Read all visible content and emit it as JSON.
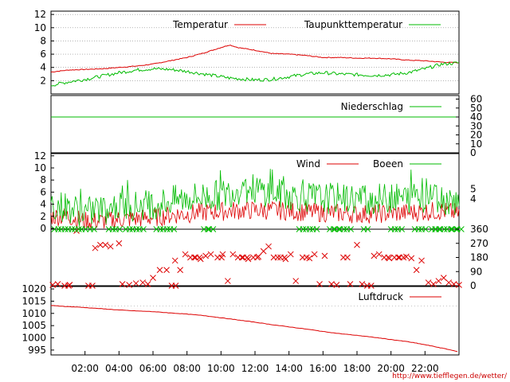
{
  "footer_url": "http://www.tiefflegen.de/wetter/",
  "colors": {
    "red": "#dd0000",
    "green": "#00bb00",
    "grid": "#888888"
  },
  "x_ticks": [
    "02:00",
    "04:00",
    "06:00",
    "08:00",
    "10:00",
    "12:00",
    "14:00",
    "16:00",
    "18:00",
    "20:00",
    "22:00"
  ],
  "chart_data": [
    {
      "type": "line",
      "panel": "temperature",
      "y_ticks": [
        "2",
        "4",
        "6",
        "8",
        "10",
        "12"
      ],
      "ylim": [
        0,
        12.5
      ],
      "x_hours": [
        0,
        1,
        2,
        3,
        4,
        5,
        6,
        7,
        8,
        9,
        10,
        10.5,
        11,
        12,
        13,
        14,
        15,
        16,
        17,
        18,
        19,
        20,
        21,
        22,
        23,
        24
      ],
      "series": [
        {
          "name": "Temperatur",
          "color": "#dd0000",
          "values": [
            3.3,
            3.6,
            3.7,
            3.8,
            4.0,
            4.2,
            4.5,
            5.0,
            5.5,
            6.2,
            7.0,
            7.4,
            7.0,
            6.6,
            6.1,
            6.0,
            5.8,
            5.5,
            5.5,
            5.4,
            5.4,
            5.3,
            5.1,
            5.0,
            4.8,
            4.7
          ]
        },
        {
          "name": "Taupunkttemperatur",
          "color": "#00bb00",
          "values": [
            1.3,
            1.8,
            2.2,
            2.7,
            3.2,
            3.6,
            3.8,
            3.7,
            3.4,
            3.0,
            2.6,
            2.4,
            2.3,
            2.1,
            2.2,
            2.6,
            3.0,
            3.2,
            3.0,
            2.9,
            2.8,
            2.9,
            3.2,
            3.8,
            4.5,
            4.7
          ]
        }
      ]
    },
    {
      "type": "line",
      "panel": "precipitation",
      "y_ticks": [
        "0",
        "10",
        "20",
        "30",
        "40",
        "50",
        "60"
      ],
      "ylim": [
        0,
        64
      ],
      "series": [
        {
          "name": "Niederschlag",
          "color": "#00bb00",
          "x_hours": [
            0,
            24
          ],
          "values": [
            40,
            40
          ]
        }
      ]
    },
    {
      "type": "line",
      "panel": "wind",
      "y_ticks": [
        "0",
        "2",
        "4",
        "6",
        "8",
        "10",
        "12"
      ],
      "y_ticks_right": [
        "4",
        "5"
      ],
      "ylim": [
        0,
        12.5
      ],
      "x_hours": [
        0,
        1,
        2,
        3,
        4,
        5,
        6,
        7,
        8,
        9,
        10,
        11,
        12,
        13,
        14,
        15,
        16,
        17,
        18,
        19,
        20,
        21,
        22,
        23,
        24
      ],
      "series": [
        {
          "name": "Wind",
          "color": "#dd0000",
          "values": [
            2,
            2,
            1.2,
            1.2,
            1.5,
            1.6,
            1.8,
            2.2,
            2.4,
            2.7,
            2.8,
            3.0,
            3.0,
            3.0,
            2.9,
            2.7,
            2.6,
            2.5,
            2.4,
            2.4,
            2.5,
            2.6,
            2.8,
            2.9,
            2.5
          ]
        },
        {
          "name": "Boeen",
          "color": "#00bb00",
          "values": [
            4.0,
            3.5,
            2.6,
            3.0,
            3.5,
            3.8,
            4.0,
            4.5,
            5.0,
            5.3,
            5.5,
            6.5,
            6.5,
            5.8,
            5.5,
            5.2,
            5.0,
            5.0,
            4.8,
            4.8,
            5.0,
            5.0,
            5.2,
            5.0,
            4.5
          ]
        }
      ]
    },
    {
      "type": "scatter",
      "panel": "wind_direction",
      "y_ticks": [
        "0",
        "90",
        "180",
        "270",
        "360"
      ],
      "ylim": [
        0,
        360
      ],
      "series": [
        {
          "name": "",
          "color": "#dd0000",
          "x_hours": [
            0.1,
            0.4,
            0.8,
            1.1,
            1.5,
            2.2,
            2.6,
            2.9,
            3.2,
            3.5,
            4.0,
            4.2,
            4.6,
            5.0,
            5.4,
            5.7,
            6.0,
            6.4,
            6.8,
            7.1,
            7.3,
            7.6,
            7.9,
            8.2,
            8.5,
            8.8,
            9.1,
            9.4,
            9.8,
            10.1,
            10.4,
            10.7,
            11.0,
            11.3,
            11.6,
            11.9,
            12.2,
            12.5,
            12.8,
            13.1,
            13.5,
            13.8,
            14.1,
            14.4,
            14.8,
            15.2,
            15.5,
            15.8,
            16.1,
            16.5,
            16.8,
            17.2,
            17.6,
            18.0,
            18.3,
            18.6,
            19.0,
            19.3,
            19.6,
            19.9,
            20.2,
            20.5,
            20.9,
            21.2,
            21.5,
            21.8,
            22.2,
            22.5,
            22.8,
            23.1,
            23.4,
            23.7,
            24.0
          ],
          "values": [
            5,
            10,
            0,
            5,
            350,
            0,
            240,
            260,
            260,
            250,
            270,
            10,
            5,
            15,
            20,
            10,
            50,
            100,
            100,
            0,
            160,
            100,
            200,
            180,
            180,
            170,
            190,
            200,
            180,
            200,
            30,
            200,
            180,
            180,
            170,
            180,
            185,
            220,
            250,
            180,
            180,
            170,
            200,
            30,
            180,
            175,
            200,
            10,
            190,
            10,
            5,
            180,
            10,
            260,
            10,
            0,
            190,
            200,
            180,
            175,
            180,
            180,
            185,
            175,
            100,
            160,
            20,
            10,
            30,
            50,
            20,
            10,
            5
          ]
        },
        {
          "name": "",
          "color": "#00bb00",
          "x_hours": [
            0.2,
            0.6,
            1.0,
            1.4,
            1.8,
            2.3,
            3.4,
            3.8,
            4.4,
            4.8,
            5.2,
            6.2,
            6.6,
            7.0,
            9.0,
            9.3,
            14.6,
            15.0,
            15.4,
            16.4,
            16.7,
            17.0,
            17.4,
            18.4,
            20.0,
            20.4,
            21.4,
            21.8,
            22.4,
            22.6,
            22.9,
            23.3,
            23.6,
            23.9
          ],
          "values": [
            360,
            360,
            360,
            360,
            360,
            360,
            360,
            360,
            360,
            360,
            360,
            360,
            360,
            360,
            360,
            360,
            360,
            360,
            360,
            360,
            360,
            360,
            360,
            360,
            360,
            360,
            360,
            360,
            360,
            360,
            360,
            360,
            360,
            360
          ]
        }
      ]
    },
    {
      "type": "line",
      "panel": "pressure",
      "y_ticks": [
        "995",
        "1000",
        "1005",
        "1010",
        "1015",
        "1020"
      ],
      "ylim": [
        993,
        1021
      ],
      "series": [
        {
          "name": "Luftdruck",
          "color": "#dd0000",
          "x_hours": [
            0,
            1,
            2,
            3,
            4,
            5,
            6,
            7,
            8,
            9,
            10,
            11,
            12,
            13,
            14,
            15,
            16,
            17,
            18,
            19,
            20,
            21,
            22,
            23,
            24
          ],
          "values": [
            1013.2,
            1012.8,
            1012.4,
            1011.9,
            1011.4,
            1011.0,
            1010.7,
            1010.2,
            1009.7,
            1009.1,
            1008.2,
            1007.3,
            1006.4,
            1005.4,
            1004.5,
            1003.6,
            1002.6,
            1001.7,
            1001.0,
            1000.2,
            999.3,
            998.4,
            997.2,
            995.8,
            994.3
          ]
        }
      ]
    }
  ]
}
